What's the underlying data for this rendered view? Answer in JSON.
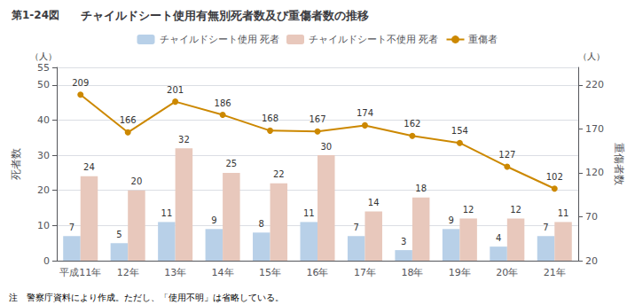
{
  "chart_data": {
    "type": "bar",
    "header_label": "第1-24図",
    "title": "チャイルドシート使用有無別死者数及び重傷者数の推移",
    "ylabel": "死者数",
    "y2label": "重傷者数",
    "yunits": "（人）",
    "y2units": "（人）",
    "note": "注　警察庁資料により作成。ただし、「使用不明」は省略している。",
    "categories": [
      "平成11年",
      "12年",
      "13年",
      "14年",
      "15年",
      "16年",
      "17年",
      "18年",
      "19年",
      "20年",
      "21年"
    ],
    "series": [
      {
        "name": "チャイルドシート使用 死者",
        "type": "bar",
        "color": "#b8d0e8",
        "values": [
          7,
          5,
          11,
          9,
          8,
          11,
          7,
          3,
          9,
          4,
          7
        ]
      },
      {
        "name": "チャイルドシート不使用 死者",
        "type": "bar",
        "color": "#e8c8bc",
        "values": [
          24,
          20,
          32,
          25,
          22,
          30,
          14,
          18,
          12,
          12,
          11
        ]
      },
      {
        "name": "重傷者",
        "type": "line",
        "axis": "y2",
        "color": "#cc8800",
        "marker": "circle",
        "values": [
          209,
          166,
          201,
          186,
          168,
          167,
          174,
          162,
          154,
          127,
          102
        ]
      }
    ],
    "ylim": [
      0,
      55
    ],
    "yticks": [
      0,
      10,
      20,
      30,
      40,
      50
    ],
    "y2lim": [
      20,
      240
    ],
    "y2ticks": [
      20,
      70,
      120,
      170,
      220
    ],
    "grid": true,
    "legend": "top",
    "data_labels": true
  }
}
